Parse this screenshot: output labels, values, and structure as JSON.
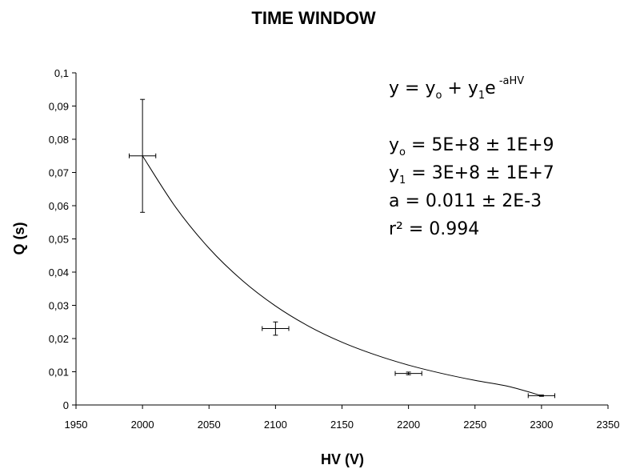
{
  "chart_data": {
    "type": "scatter",
    "title": "TIME WINDOW",
    "xlabel": "HV (V)",
    "ylabel": "Q (s)",
    "xlim": [
      1950,
      2350
    ],
    "ylim": [
      0,
      0.1
    ],
    "x_ticks": [
      "1950",
      "2000",
      "2050",
      "2100",
      "2150",
      "2200",
      "2250",
      "2300",
      "2350"
    ],
    "x_tick_values": [
      1950,
      2000,
      2050,
      2100,
      2150,
      2200,
      2250,
      2300,
      2350
    ],
    "y_ticks": [
      "0",
      "0,01",
      "0,02",
      "0,03",
      "0,04",
      "0,05",
      "0,06",
      "0,07",
      "0,08",
      "0,09",
      "0,1"
    ],
    "y_tick_values": [
      0,
      0.01,
      0.02,
      0.03,
      0.04,
      0.05,
      0.06,
      0.07,
      0.08,
      0.09,
      0.1
    ],
    "grid": false,
    "points": [
      {
        "x": 2000,
        "y": 0.075,
        "xerr": 10,
        "yerr": 0.017
      },
      {
        "x": 2100,
        "y": 0.023,
        "xerr": 10,
        "yerr": 0.002
      },
      {
        "x": 2200,
        "y": 0.0095,
        "xerr": 10,
        "yerr": 0.0004
      },
      {
        "x": 2300,
        "y": 0.0028,
        "xerr": 10,
        "yerr": 0.0002
      }
    ],
    "fit": {
      "model": "exponential decay",
      "x_range": [
        2000,
        2300
      ],
      "samples": [
        [
          2000,
          0.075
        ],
        [
          2025,
          0.0595
        ],
        [
          2050,
          0.0472
        ],
        [
          2075,
          0.0375
        ],
        [
          2100,
          0.0298
        ],
        [
          2125,
          0.0237
        ],
        [
          2150,
          0.0189
        ],
        [
          2175,
          0.0151
        ],
        [
          2200,
          0.012
        ],
        [
          2225,
          0.0095
        ],
        [
          2250,
          0.0074
        ],
        [
          2275,
          0.0056
        ],
        [
          2300,
          0.0028
        ]
      ]
    },
    "annotations": {
      "equation": {
        "a": "y = y",
        "sub1": "o",
        "b": " + y",
        "sub2": "1",
        "c": "e",
        "sup": " -aHV"
      },
      "line_y0": {
        "a": "y",
        "sub": "o",
        "b": " = 5E+8 ± 1E+9"
      },
      "line_y1": {
        "a": "y",
        "sub": "1",
        "b": " = 3E+8 ± 1E+7"
      },
      "line_a": "a  = 0.011 ± 2E-3",
      "line_r2": "r²  = 0.994"
    }
  }
}
